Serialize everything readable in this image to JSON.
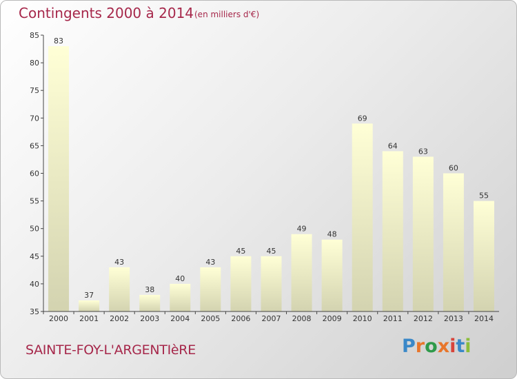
{
  "header": {
    "title": "Contingents 2000 à 2014",
    "subtitle": "(en milliers d'€)"
  },
  "footer": {
    "city": "SAINTE-FOY-L'ARGENTIèRE",
    "logo_text": "Proxiti",
    "logo_colors": [
      "#3a88c8",
      "#e8762b",
      "#2e9a4a",
      "#e8762b",
      "#d8443a",
      "#3a88c8",
      "#8cbd3a"
    ]
  },
  "chart_data": {
    "type": "bar",
    "categories": [
      "2000",
      "2001",
      "2002",
      "2003",
      "2004",
      "2005",
      "2006",
      "2007",
      "2008",
      "2009",
      "2010",
      "2011",
      "2012",
      "2013",
      "2014"
    ],
    "values": [
      83,
      37,
      43,
      38,
      40,
      43,
      45,
      45,
      49,
      48,
      69,
      64,
      63,
      60,
      55
    ],
    "title": "Contingents 2000 à 2014",
    "subtitle": "(en milliers d'€)",
    "xlabel": "",
    "ylabel": "",
    "ylim": [
      35,
      85
    ],
    "yticks": [
      35,
      40,
      45,
      50,
      55,
      60,
      65,
      70,
      75,
      80,
      85
    ],
    "grid": false,
    "colors": {
      "bar_top": "#ffffd6",
      "bar_bottom": "#d3d3b0",
      "axis": "#444444"
    }
  }
}
